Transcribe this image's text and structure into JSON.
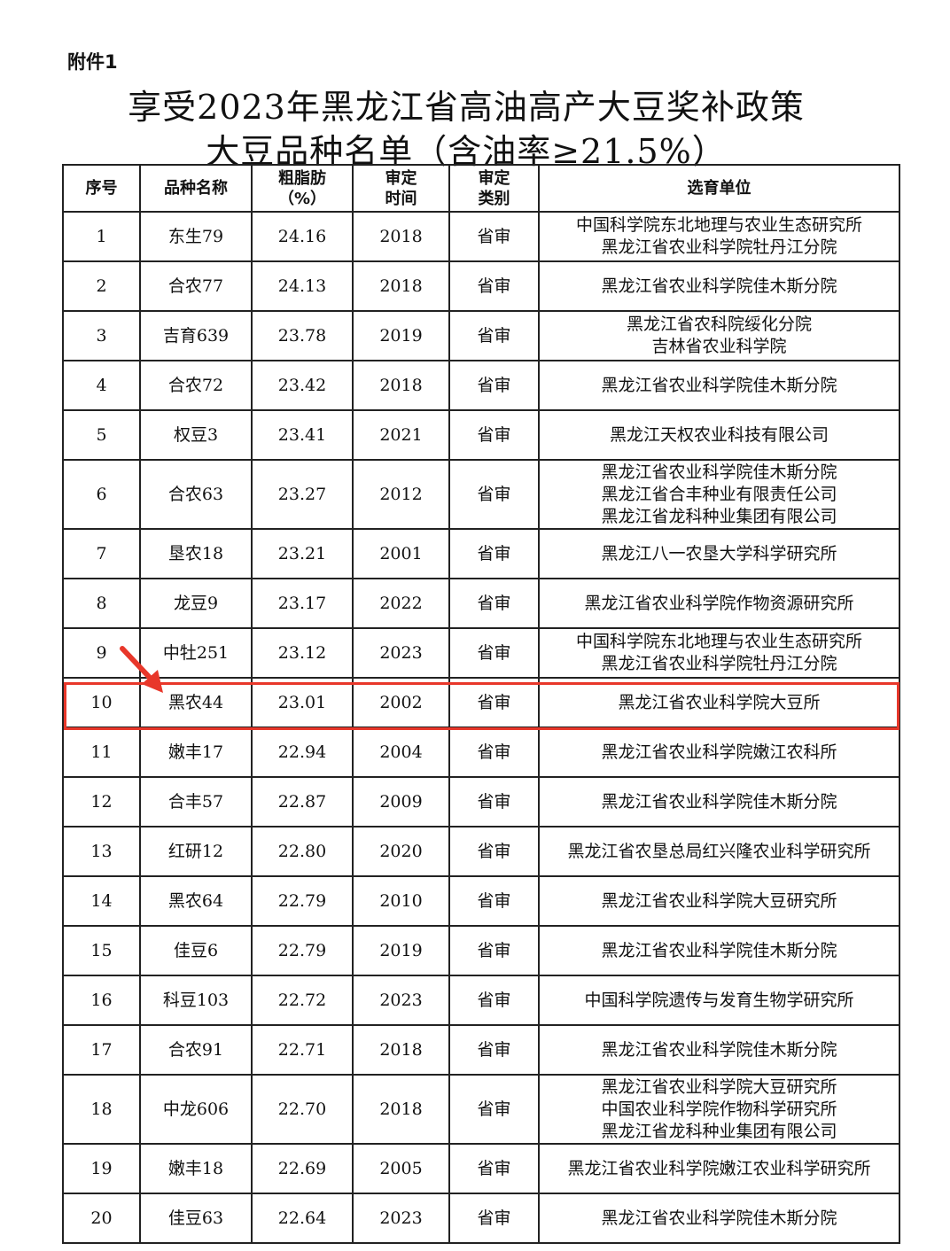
{
  "attachment_label": "附件1",
  "title_line1": "享受2023年黑龙江省高油高产大豆奖补政策",
  "title_line2": "大豆品种名单（含油率≥21.5%）",
  "table": {
    "headers": [
      "序号",
      "品种名称",
      "粗脂肪（%）",
      "审定时间",
      "审定类别",
      "选育单位"
    ],
    "rows": [
      {
        "no": "1",
        "name": "东生79",
        "fat": "24.16",
        "year": "2018",
        "type": "省审",
        "units": [
          "中国科学院东北地理与农业生态研究所",
          "黑龙江省农业科学院牡丹江分院"
        ]
      },
      {
        "no": "2",
        "name": "合农77",
        "fat": "24.13",
        "year": "2018",
        "type": "省审",
        "units": [
          "黑龙江省农业科学院佳木斯分院"
        ]
      },
      {
        "no": "3",
        "name": "吉育639",
        "fat": "23.78",
        "year": "2019",
        "type": "省审",
        "units": [
          "黑龙江省农科院绥化分院",
          "吉林省农业科学院"
        ]
      },
      {
        "no": "4",
        "name": "合农72",
        "fat": "23.42",
        "year": "2018",
        "type": "省审",
        "units": [
          "黑龙江省农业科学院佳木斯分院"
        ]
      },
      {
        "no": "5",
        "name": "权豆3",
        "fat": "23.41",
        "year": "2021",
        "type": "省审",
        "units": [
          "黑龙江天权农业科技有限公司"
        ]
      },
      {
        "no": "6",
        "name": "合农63",
        "fat": "23.27",
        "year": "2012",
        "type": "省审",
        "units": [
          "黑龙江省农业科学院佳木斯分院",
          "黑龙江省合丰种业有限责任公司",
          "黑龙江省龙科种业集团有限公司"
        ]
      },
      {
        "no": "7",
        "name": "垦农18",
        "fat": "23.21",
        "year": "2001",
        "type": "省审",
        "units": [
          "黑龙江八一农垦大学科学研究所"
        ]
      },
      {
        "no": "8",
        "name": "龙豆9",
        "fat": "23.17",
        "year": "2022",
        "type": "省审",
        "units": [
          "黑龙江省农业科学院作物资源研究所"
        ]
      },
      {
        "no": "9",
        "name": "中牡251",
        "fat": "23.12",
        "year": "2023",
        "type": "省审",
        "units": [
          "中国科学院东北地理与农业生态研究所",
          "黑龙江省农业科学院牡丹江分院"
        ]
      },
      {
        "no": "10",
        "name": "黑农44",
        "fat": "23.01",
        "year": "2002",
        "type": "省审",
        "units": [
          "黑龙江省农业科学院大豆所"
        ],
        "highlighted": true
      },
      {
        "no": "11",
        "name": "嫩丰17",
        "fat": "22.94",
        "year": "2004",
        "type": "省审",
        "units": [
          "黑龙江省农业科学院嫩江农科所"
        ]
      },
      {
        "no": "12",
        "name": "合丰57",
        "fat": "22.87",
        "year": "2009",
        "type": "省审",
        "units": [
          "黑龙江省农业科学院佳木斯分院"
        ]
      },
      {
        "no": "13",
        "name": "红研12",
        "fat": "22.80",
        "year": "2020",
        "type": "省审",
        "units": [
          "黑龙江省农垦总局红兴隆农业科学研究所"
        ]
      },
      {
        "no": "14",
        "name": "黑农64",
        "fat": "22.79",
        "year": "2010",
        "type": "省审",
        "units": [
          "黑龙江省农业科学院大豆研究所"
        ]
      },
      {
        "no": "15",
        "name": "佳豆6",
        "fat": "22.79",
        "year": "2019",
        "type": "省审",
        "units": [
          "黑龙江省农业科学院佳木斯分院"
        ]
      },
      {
        "no": "16",
        "name": "科豆103",
        "fat": "22.72",
        "year": "2023",
        "type": "省审",
        "units": [
          "中国科学院遗传与发育生物学研究所"
        ]
      },
      {
        "no": "17",
        "name": "合农91",
        "fat": "22.71",
        "year": "2018",
        "type": "省审",
        "units": [
          "黑龙江省农业科学院佳木斯分院"
        ]
      },
      {
        "no": "18",
        "name": "中龙606",
        "fat": "22.70",
        "year": "2018",
        "type": "省审",
        "units": [
          "黑龙江省农业科学院大豆研究所",
          "中国农业科学院作物科学研究所",
          "黑龙江省龙科种业集团有限公司"
        ]
      },
      {
        "no": "19",
        "name": "嫩丰18",
        "fat": "22.69",
        "year": "2005",
        "type": "省审",
        "units": [
          "黑龙江省农业科学院嫩江农业科学研究所"
        ]
      },
      {
        "no": "20",
        "name": "佳豆63",
        "fat": "22.64",
        "year": "2023",
        "type": "省审",
        "units": [
          "黑龙江省农业科学院佳木斯分院"
        ]
      }
    ]
  },
  "highlight_color": "#e8372a"
}
